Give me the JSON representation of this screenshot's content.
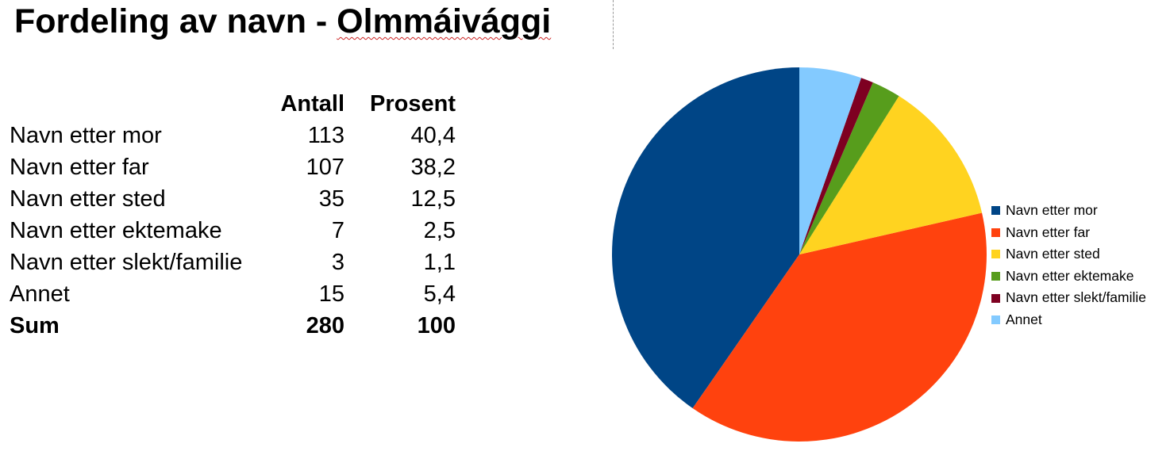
{
  "title_prefix": "Fordeling av navn - ",
  "title_place": "Olmmáivággi",
  "table": {
    "headers": {
      "label": "",
      "count": "Antall",
      "percent": "Prosent"
    },
    "rows": [
      {
        "label": "Navn etter mor",
        "count": "113",
        "percent": "40,4"
      },
      {
        "label": "Navn etter far",
        "count": "107",
        "percent": "38,2"
      },
      {
        "label": "Navn etter sted",
        "count": "35",
        "percent": "12,5"
      },
      {
        "label": "Navn etter ektemake",
        "count": "7",
        "percent": "2,5"
      },
      {
        "label": "Navn etter slekt/familie",
        "count": "3",
        "percent": "1,1"
      },
      {
        "label": "Annet",
        "count": "15",
        "percent": "5,4"
      }
    ],
    "total": {
      "label": "Sum",
      "count": "280",
      "percent": "100"
    }
  },
  "chart_data": {
    "type": "pie",
    "categories": [
      "Navn etter mor",
      "Navn etter far",
      "Navn etter sted",
      "Navn etter ektemake",
      "Navn etter slekt/familie",
      "Annet"
    ],
    "values": [
      113,
      107,
      35,
      7,
      3,
      15
    ],
    "colors": [
      "#004586",
      "#ff420e",
      "#ffd320",
      "#579d1c",
      "#7e0021",
      "#83caff"
    ],
    "start": "12 o'clock",
    "direction": "counterclockwise",
    "legend_position": "right",
    "title": ""
  }
}
